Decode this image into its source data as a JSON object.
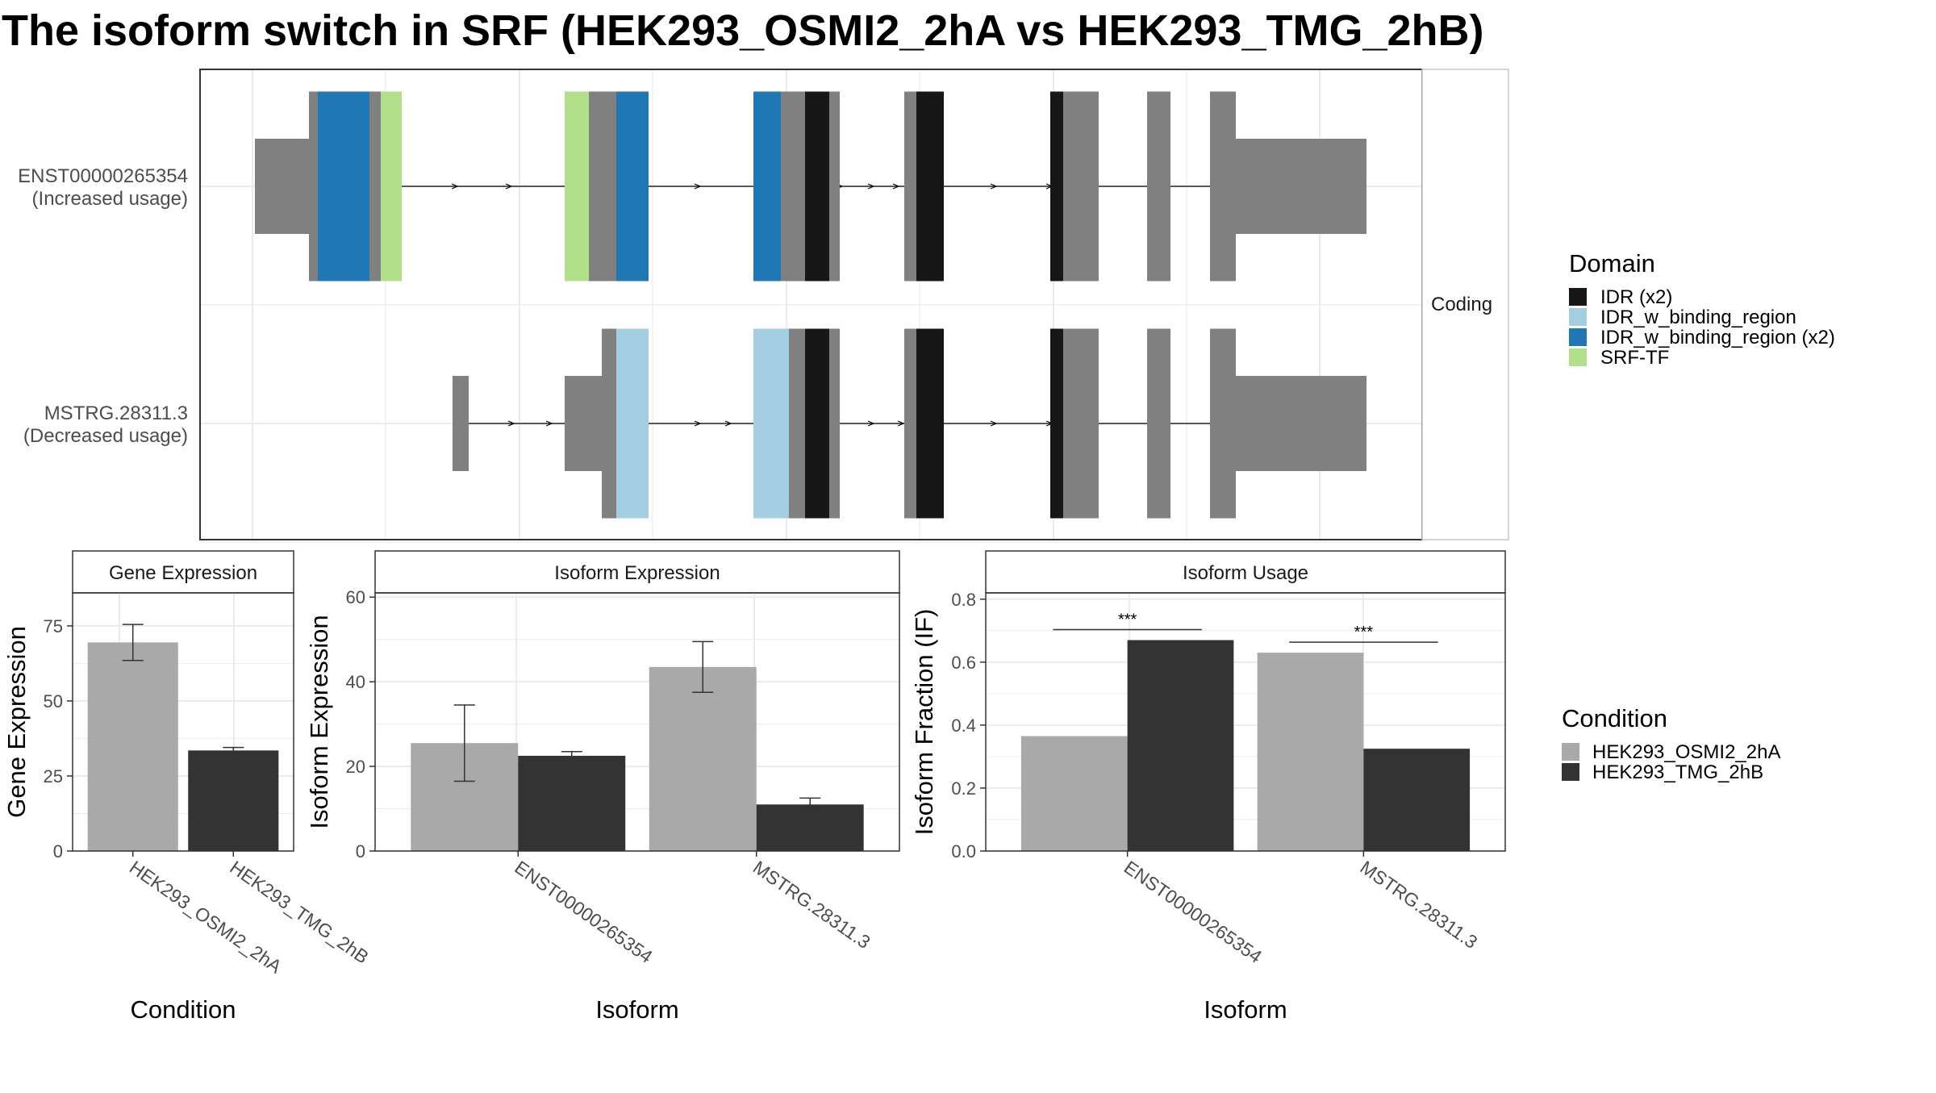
{
  "title": "The isoform switch in SRF (HEK293_OSMI2_2hA vs HEK293_TMG_2hB)",
  "colors": {
    "IDR": "#171717",
    "IDR_w_binding_region_light": "#a6cee3",
    "IDR_w_binding_region_dark": "#1f78b4",
    "SRF_TF": "#b2df8a",
    "exon": "#808080",
    "cond_a": "#a9a9a9",
    "cond_b": "#333333",
    "grid": "#ebebeb"
  },
  "structure": {
    "strip_label": "Coding",
    "transcripts": [
      {
        "id": "ENST00000265354",
        "usage": "(Increased usage)"
      },
      {
        "id": "MSTRG.28311.3",
        "usage": "(Decreased usage)"
      }
    ]
  },
  "domain_legend": {
    "title": "Domain",
    "items": [
      {
        "label": "IDR (x2)",
        "color": "#171717"
      },
      {
        "label": "IDR_w_binding_region",
        "color": "#a6cee3"
      },
      {
        "label": "IDR_w_binding_region (x2)",
        "color": "#1f78b4"
      },
      {
        "label": "SRF-TF",
        "color": "#b2df8a"
      }
    ]
  },
  "condition_legend": {
    "title": "Condition",
    "items": [
      {
        "label": "HEK293_OSMI2_2hA",
        "color": "#a9a9a9"
      },
      {
        "label": "HEK293_TMG_2hB",
        "color": "#333333"
      }
    ]
  },
  "chart_data": [
    {
      "type": "bar",
      "title": "Gene Expression",
      "xlabel": "Condition",
      "ylabel": "Gene Expression",
      "categories": [
        "HEK293_OSMI2_2hA",
        "HEK293_TMG_2hB"
      ],
      "values": [
        69.5,
        33.5
      ],
      "error_low": [
        63.5,
        32.5
      ],
      "error_high": [
        75.5,
        34.5
      ],
      "ylim": [
        0,
        86
      ],
      "yticks": [
        "0",
        "25",
        "50",
        "75"
      ]
    },
    {
      "type": "bar",
      "title": "Isoform Expression",
      "xlabel": "Isoform",
      "ylabel": "Isoform Expression",
      "categories": [
        "ENST00000265354",
        "MSTRG.28311.3"
      ],
      "series": [
        {
          "name": "HEK293_OSMI2_2hA",
          "values": [
            25.5,
            43.5
          ],
          "error_low": [
            16.5,
            37.5
          ],
          "error_high": [
            34.5,
            49.5
          ]
        },
        {
          "name": "HEK293_TMG_2hB",
          "values": [
            22.5,
            11
          ],
          "error_low": [
            21.5,
            9.5
          ],
          "error_high": [
            23.5,
            12.5
          ]
        }
      ],
      "ylim": [
        0,
        61
      ],
      "yticks": [
        "0",
        "20",
        "40",
        "60"
      ]
    },
    {
      "type": "bar",
      "title": "Isoform Usage",
      "xlabel": "Isoform",
      "ylabel": "Isoform Fraction (IF)",
      "categories": [
        "ENST00000265354",
        "MSTRG.28311.3"
      ],
      "series": [
        {
          "name": "HEK293_OSMI2_2hA",
          "values": [
            0.365,
            0.63
          ]
        },
        {
          "name": "HEK293_TMG_2hB",
          "values": [
            0.67,
            0.325
          ]
        }
      ],
      "significance": [
        "***",
        "***"
      ],
      "ylim": [
        0,
        0.82
      ],
      "yticks": [
        "0.0",
        "0.2",
        "0.4",
        "0.6",
        "0.8"
      ]
    }
  ]
}
